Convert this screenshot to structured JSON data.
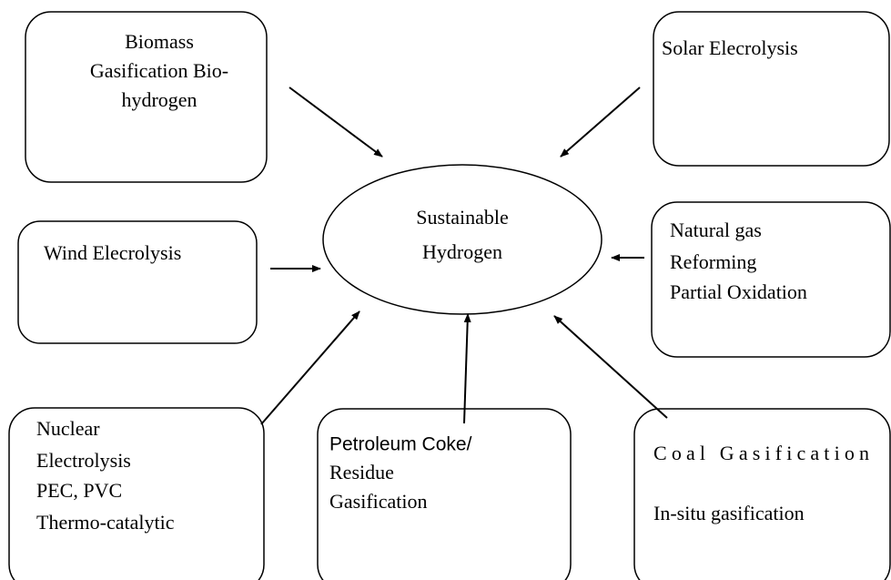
{
  "center": {
    "lines": [
      "Sustainable",
      "Hydrogen"
    ]
  },
  "nodes": [
    {
      "lines": [
        "Biomass",
        "Gasification Bio-",
        "hydrogen"
      ]
    },
    {
      "lines": [
        "Solar  Elecrolysis"
      ]
    },
    {
      "lines": [
        "Wind  Elecrolysis"
      ]
    },
    {
      "lines": [
        "Natural gas",
        "Reforming",
        "Partial Oxidation"
      ]
    },
    {
      "lines": [
        "Nuclear",
        "Electrolysis",
        "PEC, PVC",
        "Thermo-catalytic"
      ]
    },
    {
      "lines": [
        "Petroleum Coke/",
        "Residue",
        "Gasification"
      ]
    },
    {
      "lines": [
        "Coal    Gasification",
        "In-situ gasification"
      ]
    }
  ]
}
